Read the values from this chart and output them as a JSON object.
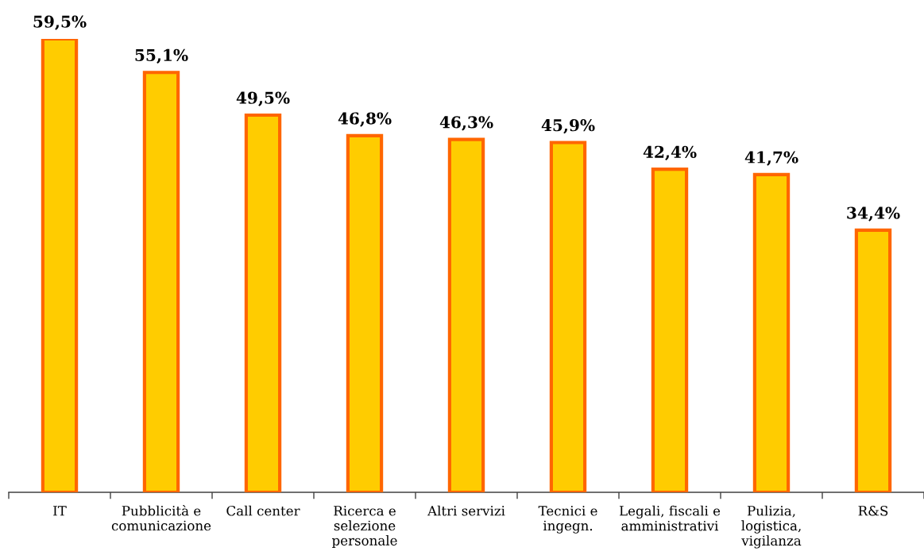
{
  "chart_data": {
    "type": "bar",
    "categories": [
      "IT",
      "Pubblicità e\ncomunicazione",
      "Call center",
      "Ricerca e\nselezione\npersonale",
      "Altri servizi",
      "Tecnici e\ningegn.",
      "Legali, fiscali e\namministrativi",
      "Pulizia,\nlogistica,\nvigilanza",
      "R&S"
    ],
    "values": [
      59.5,
      55.1,
      49.5,
      46.8,
      46.3,
      45.9,
      42.4,
      41.7,
      34.4
    ],
    "color": "#ffcc00",
    "value_labels": [
      "59,5%",
      "55,1%",
      "49,5%",
      "46,8%",
      "46,3%",
      "45,9%",
      "42,4%",
      "41,7%",
      "34,4%"
    ],
    "tick_labels": "x"
  }
}
